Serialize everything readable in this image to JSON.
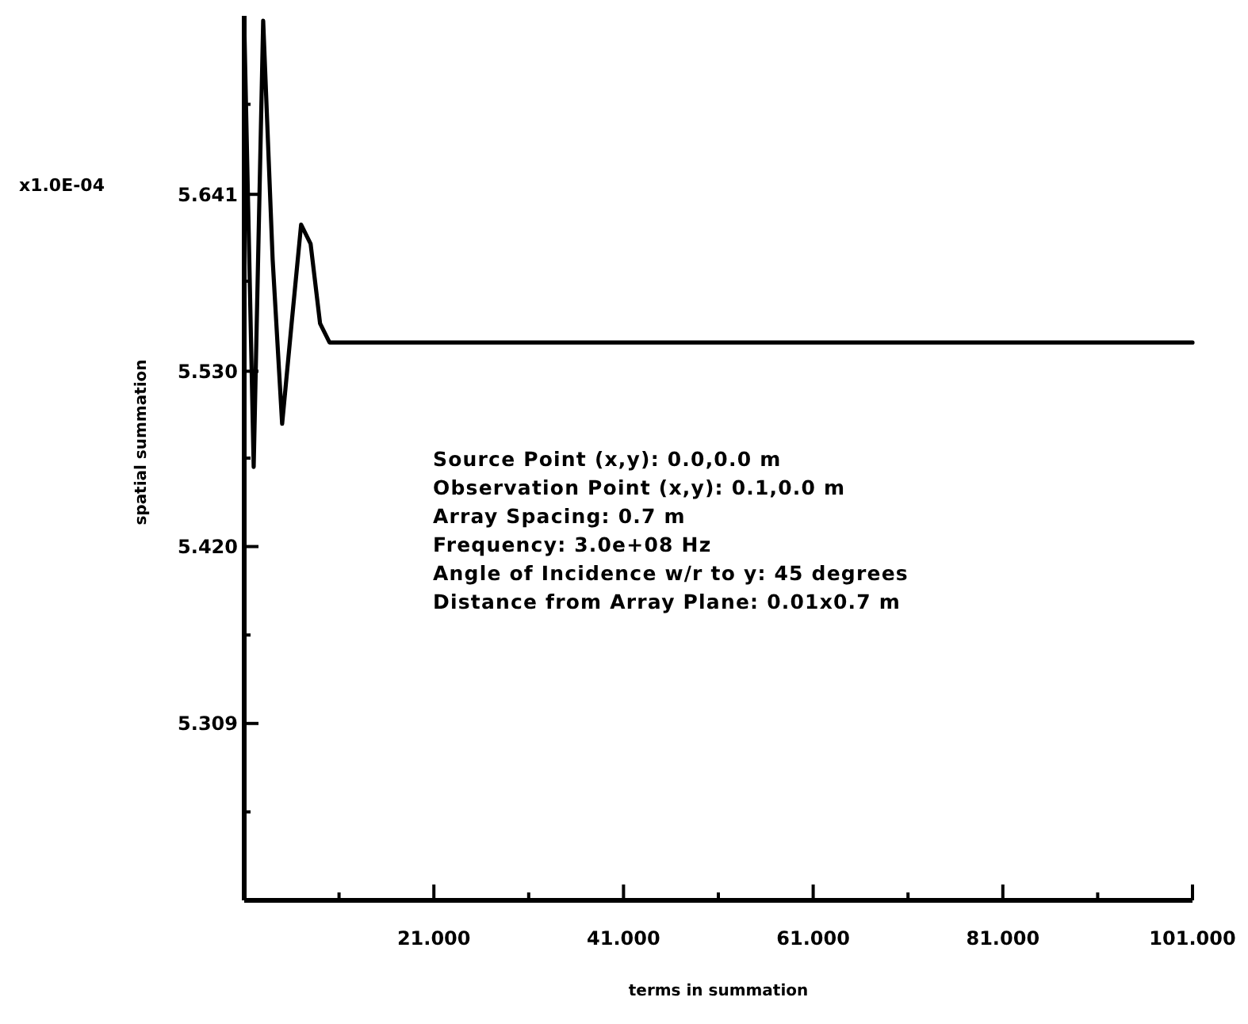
{
  "chart_data": {
    "type": "line",
    "xlabel": "terms in summation",
    "ylabel": "spatial summation",
    "x": [
      1,
      2,
      3,
      4,
      5,
      6,
      7,
      8,
      9,
      10,
      11,
      21,
      41,
      61,
      81,
      101
    ],
    "series": [
      {
        "color": "#000000",
        "values": [
          5.75,
          5.47,
          5.75,
          5.6,
          5.497,
          5.56,
          5.622,
          5.61,
          5.56,
          5.548,
          5.548,
          5.548,
          5.548,
          5.548,
          5.548,
          5.548
        ]
      }
    ],
    "xlim": [
      1,
      101
    ],
    "xticks": [
      {
        "value": 11,
        "label": null
      },
      {
        "value": 21,
        "label": "21.000"
      },
      {
        "value": 31,
        "label": null
      },
      {
        "value": 41,
        "label": "41.000"
      },
      {
        "value": 51,
        "label": null
      },
      {
        "value": 61,
        "label": "61.000"
      },
      {
        "value": 71,
        "label": null
      },
      {
        "value": 81,
        "label": "81.000"
      },
      {
        "value": 91,
        "label": null
      },
      {
        "value": 101,
        "label": "101.000"
      }
    ],
    "ylim": [
      5.198,
      5.753
    ],
    "yticks": [
      {
        "value": 5.2535,
        "label": null
      },
      {
        "value": 5.309,
        "label": "5.309"
      },
      {
        "value": 5.3645,
        "label": null
      },
      {
        "value": 5.42,
        "label": "5.420"
      },
      {
        "value": 5.4755,
        "label": null
      },
      {
        "value": 5.53,
        "label": "5.530"
      },
      {
        "value": 5.5865,
        "label": null
      },
      {
        "value": 5.641,
        "label": "5.641"
      },
      {
        "value": 5.6975,
        "label": null
      }
    ],
    "grid": false,
    "marker": "none",
    "line_style": "solid",
    "annotations": [
      "x1.0E-04",
      "Source Point (x,y):  0.0,0.0 m",
      "Observation Point (x,y):  0.1,0.0 m",
      "Array Spacing: 0.7 m",
      "Frequency:  3.0e+08 Hz",
      "Angle of Incidence w/r to y:  45 degrees",
      "Distance from Array Plane:  0.01x0.7 m"
    ]
  }
}
